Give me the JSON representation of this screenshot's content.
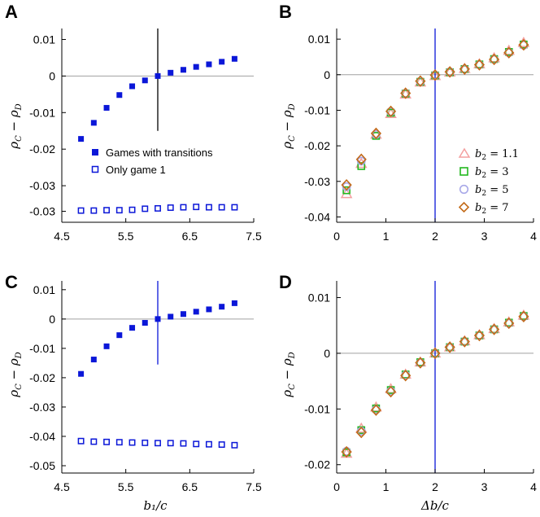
{
  "chart_data": [
    {
      "type": "scatter",
      "panel": "A",
      "xlabel": "",
      "ylabel": "ρ_C − ρ_D",
      "xlim": [
        4.5,
        7.5
      ],
      "ylim": [
        -0.04,
        0.013
      ],
      "xticks": [
        4.5,
        5.5,
        6.5,
        7.5
      ],
      "xtick_labels": [
        "4.5",
        "5.5",
        "6.5",
        "7.5"
      ],
      "yticks": [
        0.01,
        0,
        -0.01,
        -0.02,
        -0.03
      ],
      "ytick_labels": [
        "0.01",
        "0",
        "-0.01",
        "-0.02",
        "-0.03"
      ],
      "extra_ytick_labels": [
        {
          "value": -0.037,
          "label": "-0.03"
        }
      ],
      "hline": 0,
      "vline": {
        "x": 6,
        "y_from": -0.015,
        "y_to": 0.013
      },
      "legend": {
        "position": "lower-center",
        "entries": [
          "Games with transitions",
          "Only game 1"
        ]
      },
      "series": [
        {
          "name": "Games with transitions",
          "marker": "filled-square",
          "color": "#0b17d8",
          "x": [
            4.8,
            5.0,
            5.2,
            5.4,
            5.6,
            5.8,
            6.0,
            6.2,
            6.4,
            6.6,
            6.8,
            7.0,
            7.2
          ],
          "y": [
            -0.0172,
            -0.0128,
            -0.0087,
            -0.0052,
            -0.0028,
            -0.0012,
            0.0,
            0.0009,
            0.0017,
            0.0025,
            0.0032,
            0.0039,
            0.0047
          ]
        },
        {
          "name": "Only game 1",
          "marker": "open-square",
          "color": "#0b17d8",
          "x": [
            4.8,
            5.0,
            5.2,
            5.4,
            5.6,
            5.8,
            6.0,
            6.2,
            6.4,
            6.6,
            6.8,
            7.0,
            7.2
          ],
          "y": [
            -0.0368,
            -0.0368,
            -0.0367,
            -0.0367,
            -0.0366,
            -0.0363,
            -0.0362,
            -0.036,
            -0.0359,
            -0.0358,
            -0.0359,
            -0.0359,
            -0.0359
          ]
        }
      ]
    },
    {
      "type": "scatter",
      "panel": "B",
      "xlabel": "",
      "ylabel": "ρ_C − ρ_D",
      "xlim": [
        0,
        4
      ],
      "ylim": [
        -0.0415,
        0.013
      ],
      "xticks": [
        0,
        1,
        2,
        3,
        4
      ],
      "xtick_labels": [
        "0",
        "1",
        "2",
        "3",
        "4"
      ],
      "yticks": [
        0.01,
        0,
        -0.01,
        -0.02,
        -0.03,
        -0.04
      ],
      "ytick_labels": [
        "0.01",
        "0",
        "-0.01",
        "-0.02",
        "-0.03",
        "-0.04"
      ],
      "hline": 0,
      "vline": {
        "x": 2
      },
      "legend": {
        "position": "right",
        "entries": [
          "b2 = 1.1",
          "b2 = 3",
          "b2 = 5",
          "b2 = 7"
        ]
      },
      "series": [
        {
          "name": "b2 = 1.1",
          "marker": "triangle",
          "color": "#f4a0a0",
          "x": [
            0.2,
            0.5,
            0.8,
            1.1,
            1.4,
            1.7,
            2.0,
            2.3,
            2.6,
            2.9,
            3.2,
            3.5,
            3.8
          ],
          "y": [
            -0.0335,
            -0.025,
            -0.0168,
            -0.011,
            -0.0055,
            -0.0021,
            -0.0003,
            0.0007,
            0.0017,
            0.003,
            0.0047,
            0.0068,
            0.009
          ]
        },
        {
          "name": "b2 = 3",
          "marker": "square",
          "color": "#22b81e",
          "x": [
            0.2,
            0.5,
            0.8,
            1.1,
            1.4,
            1.7,
            2.0,
            2.3,
            2.6,
            2.9,
            3.2,
            3.5,
            3.8
          ],
          "y": [
            -0.0325,
            -0.0257,
            -0.0172,
            -0.0107,
            -0.0053,
            -0.002,
            -0.0002,
            0.0007,
            0.0016,
            0.0029,
            0.0044,
            0.0064,
            0.0085
          ]
        },
        {
          "name": "b2 = 5",
          "marker": "circle",
          "color": "#a8a8e8",
          "x": [
            0.2,
            0.5,
            0.8,
            1.1,
            1.4,
            1.7,
            2.0,
            2.3,
            2.6,
            2.9,
            3.2,
            3.5,
            3.8
          ],
          "y": [
            -0.0315,
            -0.0243,
            -0.0168,
            -0.0104,
            -0.0052,
            -0.0019,
            -0.0001,
            0.0008,
            0.0016,
            0.0028,
            0.0043,
            0.0062,
            0.0083
          ]
        },
        {
          "name": "b2 = 7",
          "marker": "diamond",
          "color": "#c36a18",
          "x": [
            0.2,
            0.5,
            0.8,
            1.1,
            1.4,
            1.7,
            2.0,
            2.3,
            2.6,
            2.9,
            3.2,
            3.5,
            3.8
          ],
          "y": [
            -0.031,
            -0.0238,
            -0.0165,
            -0.0103,
            -0.0052,
            -0.0018,
            -0.0001,
            0.0008,
            0.0016,
            0.0028,
            0.0043,
            0.0062,
            0.0084
          ]
        }
      ]
    },
    {
      "type": "scatter",
      "panel": "C",
      "xlabel": "b₁/c",
      "ylabel": "ρ_C − ρ_D",
      "xlim": [
        4.5,
        7.5
      ],
      "ylim": [
        -0.0525,
        0.013
      ],
      "xticks": [
        4.5,
        5.5,
        6.5,
        7.5
      ],
      "xtick_labels": [
        "4.5",
        "5.5",
        "6.5",
        "7.5"
      ],
      "yticks": [
        0.01,
        0,
        -0.01,
        -0.02,
        -0.03,
        -0.04,
        -0.05
      ],
      "ytick_labels": [
        "0.01",
        "0",
        "-0.01",
        "-0.02",
        "-0.03",
        "-0.04",
        "-0.05"
      ],
      "hline": 0,
      "vline": {
        "x": 6,
        "y_from": -0.0155,
        "y_to": 0.013
      },
      "series": [
        {
          "name": "Games with transitions",
          "marker": "filled-square",
          "color": "#0b17d8",
          "x": [
            4.8,
            5.0,
            5.2,
            5.4,
            5.6,
            5.8,
            6.0,
            6.2,
            6.4,
            6.6,
            6.8,
            7.0,
            7.2
          ],
          "y": [
            -0.0187,
            -0.0138,
            -0.0093,
            -0.0055,
            -0.003,
            -0.0013,
            0.0,
            0.0008,
            0.0017,
            0.0025,
            0.0033,
            0.0042,
            0.0054
          ]
        },
        {
          "name": "Only game 1",
          "marker": "open-square",
          "color": "#0b17d8",
          "x": [
            4.8,
            5.0,
            5.2,
            5.4,
            5.6,
            5.8,
            6.0,
            6.2,
            6.4,
            6.6,
            6.8,
            7.0,
            7.2
          ],
          "y": [
            -0.0416,
            -0.0418,
            -0.0419,
            -0.042,
            -0.0421,
            -0.0422,
            -0.0423,
            -0.0423,
            -0.0424,
            -0.0426,
            -0.0427,
            -0.0428,
            -0.043
          ]
        }
      ]
    },
    {
      "type": "scatter",
      "panel": "D",
      "xlabel": "Δb/c",
      "ylabel": "ρ_C − ρ_D",
      "xlim": [
        0,
        4
      ],
      "ylim": [
        -0.0215,
        0.013
      ],
      "xticks": [
        0,
        1,
        2,
        3,
        4
      ],
      "xtick_labels": [
        "0",
        "1",
        "2",
        "3",
        "4"
      ],
      "yticks": [
        0.01,
        0,
        -0.01,
        -0.02
      ],
      "ytick_labels": [
        "0.01",
        "0",
        "-0.01",
        "-0.02"
      ],
      "hline": 0,
      "vline": {
        "x": 2
      },
      "series": [
        {
          "name": "b2 = 1.1",
          "marker": "triangle",
          "color": "#f4a0a0",
          "x": [
            0.2,
            0.5,
            0.8,
            1.1,
            1.4,
            1.7,
            2.0,
            2.3,
            2.6,
            2.9,
            3.2,
            3.5,
            3.8
          ],
          "y": [
            -0.018,
            -0.0135,
            -0.0097,
            -0.0064,
            -0.0038,
            -0.0016,
            0.0,
            0.0011,
            0.0022,
            0.0033,
            0.0044,
            0.0056,
            0.0068
          ]
        },
        {
          "name": "b2 = 3",
          "marker": "square",
          "color": "#22b81e",
          "x": [
            0.2,
            0.5,
            0.8,
            1.1,
            1.4,
            1.7,
            2.0,
            2.3,
            2.6,
            2.9,
            3.2,
            3.5,
            3.8
          ],
          "y": [
            -0.0178,
            -0.0138,
            -0.0099,
            -0.0066,
            -0.0038,
            -0.0016,
            0.0,
            0.0011,
            0.0021,
            0.0032,
            0.0043,
            0.0055,
            0.0067
          ]
        },
        {
          "name": "b2 = 5",
          "marker": "circle",
          "color": "#a8a8e8",
          "x": [
            0.2,
            0.5,
            0.8,
            1.1,
            1.4,
            1.7,
            2.0,
            2.3,
            2.6,
            2.9,
            3.2,
            3.5,
            3.8
          ],
          "y": [
            -0.0176,
            -0.014,
            -0.0101,
            -0.0068,
            -0.0039,
            -0.0017,
            0.0,
            0.0011,
            0.0021,
            0.0032,
            0.0043,
            0.0054,
            0.0066
          ]
        },
        {
          "name": "b2 = 7",
          "marker": "diamond",
          "color": "#c36a18",
          "x": [
            0.2,
            0.5,
            0.8,
            1.1,
            1.4,
            1.7,
            2.0,
            2.3,
            2.6,
            2.9,
            3.2,
            3.5,
            3.8
          ],
          "y": [
            -0.0177,
            -0.0142,
            -0.0102,
            -0.0069,
            -0.004,
            -0.0017,
            0.0,
            0.0011,
            0.0021,
            0.0032,
            0.0043,
            0.0054,
            0.0066
          ]
        }
      ]
    }
  ],
  "axis_color": "#000000",
  "zero_line_color": "#a0a0a0",
  "vline_colors": [
    "#000000",
    "#0b17d8",
    "#0b17d8",
    "#0b17d8"
  ]
}
